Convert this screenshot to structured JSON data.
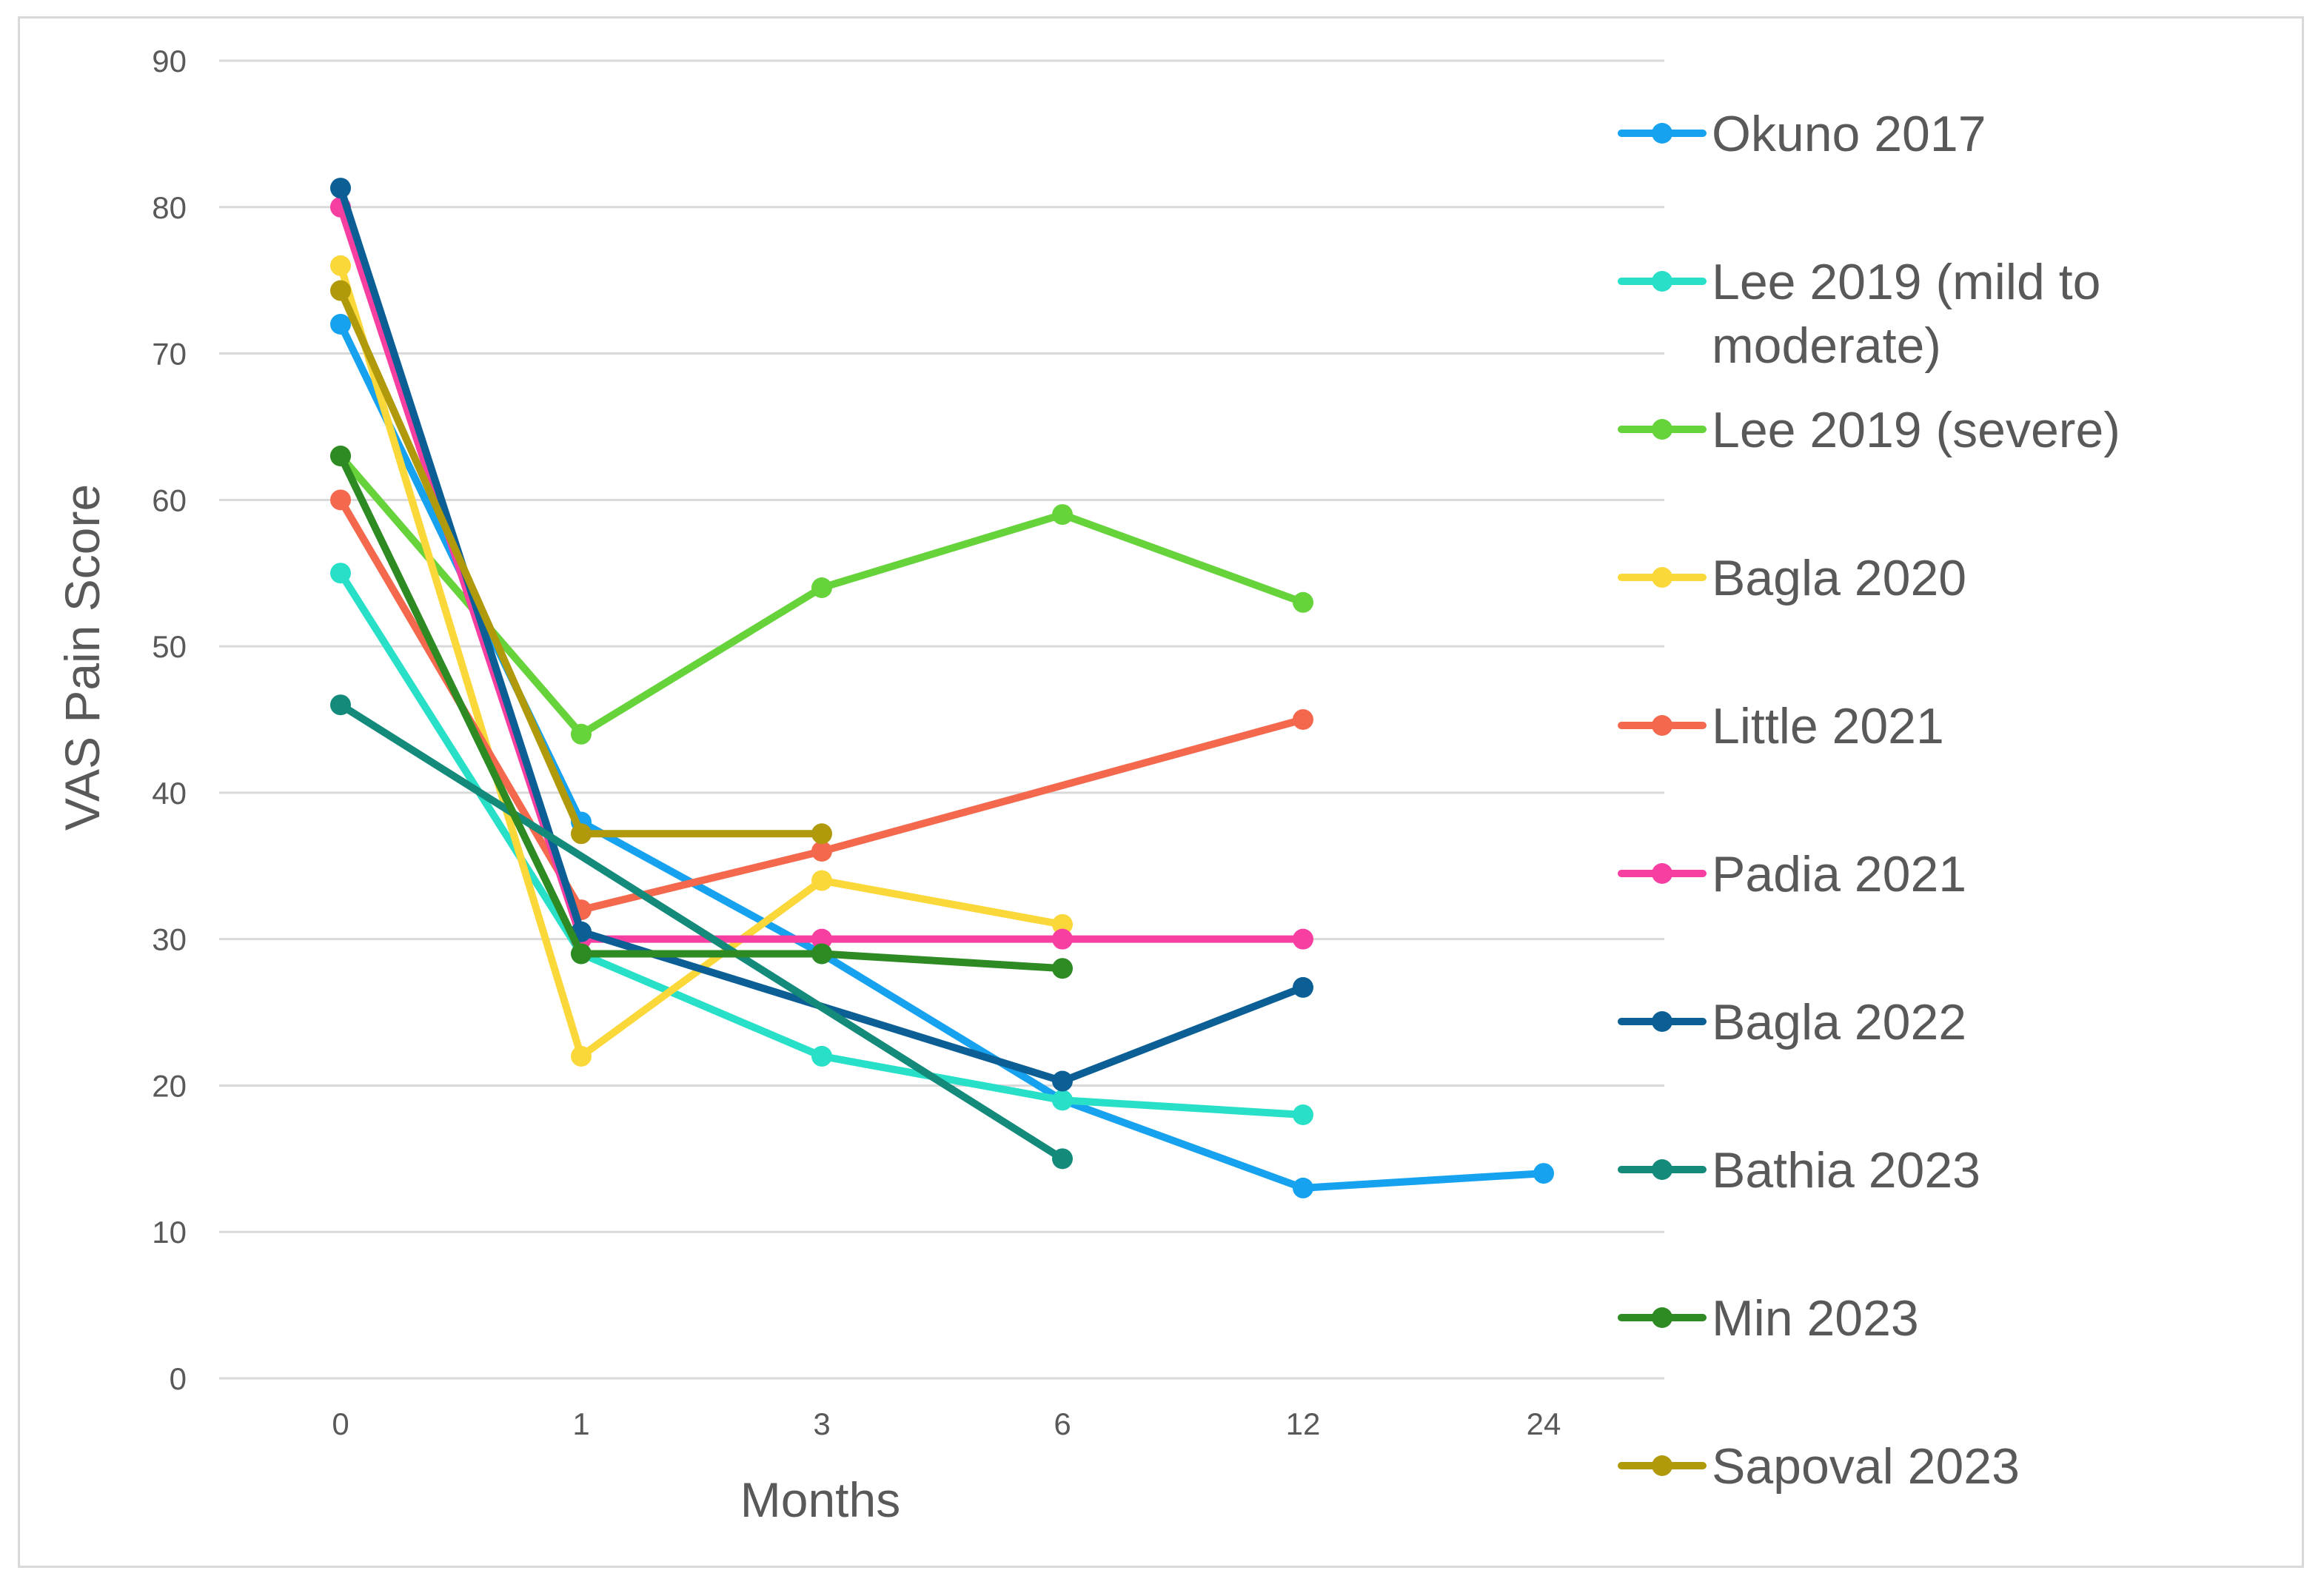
{
  "chart_data": {
    "type": "line",
    "title": "",
    "xlabel": "Months",
    "ylabel": "VAS Pain Score",
    "categories": [
      "0",
      "1",
      "3",
      "6",
      "12",
      "24"
    ],
    "ylim": [
      0,
      90
    ],
    "yticks": [
      "0",
      "10",
      "20",
      "30",
      "40",
      "50",
      "60",
      "70",
      "80",
      "90"
    ],
    "grid": true,
    "legend_position": "right",
    "series": [
      {
        "name": "Okuno 2017",
        "legend_lines": [
          "Okuno 2017"
        ],
        "color": "#17a2f0",
        "values": [
          72,
          38,
          29,
          19,
          13,
          14
        ]
      },
      {
        "name": "Lee 2019 (mild to moderate)",
        "legend_lines": [
          "Lee 2019 (mild to",
          "moderate)"
        ],
        "color": "#28e0c8",
        "values": [
          55,
          29,
          22,
          19,
          18,
          null
        ]
      },
      {
        "name": "Lee 2019 (severe)",
        "legend_lines": [
          "Lee 2019 (severe)"
        ],
        "color": "#66d33b",
        "values": [
          63,
          44,
          54,
          59,
          53,
          null
        ]
      },
      {
        "name": "Bagla 2020",
        "legend_lines": [
          "Bagla 2020"
        ],
        "color": "#fbd83a",
        "values": [
          76,
          22,
          34,
          31,
          null,
          null
        ]
      },
      {
        "name": "Little 2021",
        "legend_lines": [
          "Little 2021"
        ],
        "color": "#f4694e",
        "values": [
          60,
          32,
          36,
          null,
          45,
          null
        ]
      },
      {
        "name": "Padia 2021",
        "legend_lines": [
          "Padia 2021"
        ],
        "color": "#f73fa1",
        "values": [
          80,
          30,
          30,
          30,
          30,
          null
        ]
      },
      {
        "name": "Bagla 2022",
        "legend_lines": [
          "Bagla 2022"
        ],
        "color": "#0b5f94",
        "values": [
          81.3,
          30.5,
          null,
          20.3,
          26.7,
          null
        ]
      },
      {
        "name": "Bathia 2023",
        "legend_lines": [
          "Bathia 2023"
        ],
        "color": "#138a7a",
        "values": [
          46,
          null,
          null,
          15,
          null,
          null
        ]
      },
      {
        "name": "Min 2023",
        "legend_lines": [
          "Min 2023"
        ],
        "color": "#2e8b24",
        "values": [
          63,
          29,
          29,
          28,
          null,
          null
        ]
      },
      {
        "name": "Sapoval 2023",
        "legend_lines": [
          "Sapoval 2023"
        ],
        "color": "#b09a0c",
        "values": [
          74.3,
          37.2,
          37.2,
          null,
          null,
          null
        ]
      }
    ]
  }
}
